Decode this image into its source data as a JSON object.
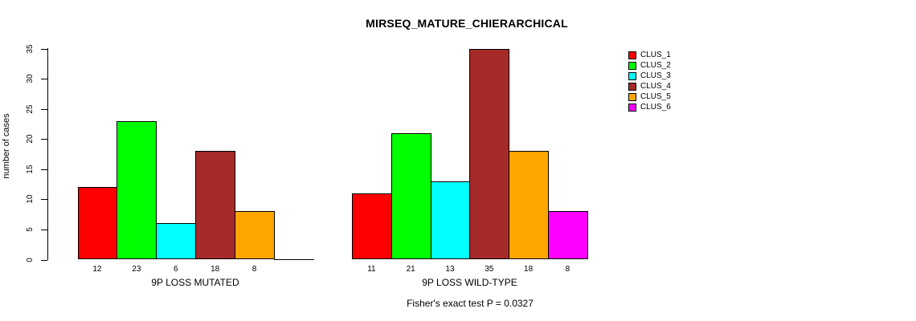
{
  "chart_data": {
    "type": "bar",
    "title": "MIRSEQ_MATURE_CHIERARCHICAL",
    "ylabel": "number of cases",
    "ylim": [
      0,
      35
    ],
    "yticks": [
      0,
      5,
      10,
      15,
      20,
      25,
      30,
      35
    ],
    "grid": false,
    "legend_position": "right",
    "clusters": [
      {
        "label": "CLUS_1",
        "color": "#FF0000"
      },
      {
        "label": "CLUS_2",
        "color": "#00FF00"
      },
      {
        "label": "CLUS_3",
        "color": "#00FFFF"
      },
      {
        "label": "CLUS_4",
        "color": "#A52A2A"
      },
      {
        "label": "CLUS_5",
        "color": "#FFA500"
      },
      {
        "label": "CLUS_6",
        "color": "#FF00FF"
      }
    ],
    "groups": [
      {
        "xlabel": "9P LOSS MUTATED",
        "values": [
          12,
          23,
          6,
          18,
          8,
          0
        ],
        "bar_labels": [
          "12",
          "23",
          "6",
          "18",
          "8",
          ""
        ]
      },
      {
        "xlabel": "9P LOSS WILD-TYPE",
        "values": [
          11,
          21,
          13,
          35,
          18,
          8
        ],
        "bar_labels": [
          "11",
          "21",
          "13",
          "35",
          "18",
          "8"
        ]
      }
    ],
    "annotation": "Fisher's exact test P = 0.0327"
  }
}
